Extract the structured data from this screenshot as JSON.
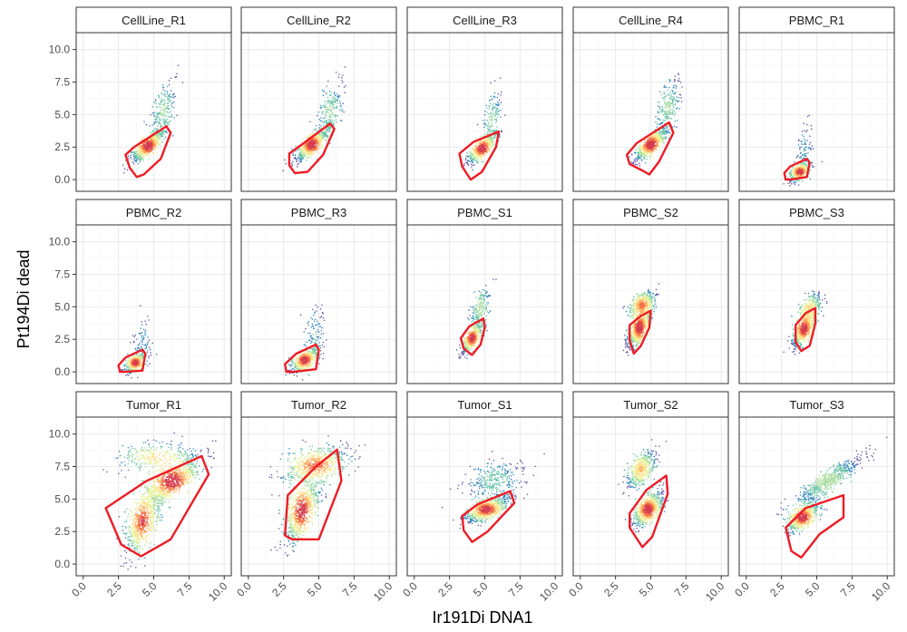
{
  "chart_data": {
    "type": "scatter",
    "xlabel": "Ir191Di DNA1",
    "ylabel": "Pt194Di dead",
    "xlim": [
      -0.5,
      10.5
    ],
    "ylim": [
      -0.9,
      11.3
    ],
    "x_ticks": [
      "0.0",
      "2.5",
      "5.0",
      "7.5",
      "10.0"
    ],
    "y_ticks": [
      "0.0",
      "2.5",
      "5.0",
      "7.5",
      "10.0"
    ],
    "grid": true,
    "colors": {
      "gate": "#ee1c25",
      "density_low": "#5e4fa2",
      "density_mid": "#3288bd",
      "density_high1": "#abdda4",
      "density_high2": "#fee08b",
      "density_peak": "#d53e4f"
    },
    "panels": [
      {
        "label": "CellLine_R1",
        "gate": [
          [
            3.0,
            1.9
          ],
          [
            3.6,
            2.5
          ],
          [
            5.9,
            4.1
          ],
          [
            6.2,
            3.6
          ],
          [
            5.5,
            1.6
          ],
          [
            4.3,
            0.4
          ],
          [
            3.8,
            0.2
          ],
          [
            3.3,
            0.9
          ]
        ],
        "clusters": [
          {
            "cx": 4.6,
            "cy": 2.6,
            "sx": 0.55,
            "sy": 0.6,
            "rho": 0.8,
            "n": 700
          },
          {
            "cx": 5.7,
            "cy": 5.3,
            "sx": 0.45,
            "sy": 1.1,
            "rho": 0.55,
            "n": 220
          }
        ]
      },
      {
        "label": "CellLine_R2",
        "gate": [
          [
            2.9,
            2.0
          ],
          [
            3.8,
            2.7
          ],
          [
            5.8,
            4.3
          ],
          [
            6.1,
            3.9
          ],
          [
            5.3,
            1.9
          ],
          [
            4.2,
            0.6
          ],
          [
            3.3,
            0.5
          ],
          [
            2.9,
            1.1
          ]
        ],
        "clusters": [
          {
            "cx": 4.5,
            "cy": 2.7,
            "sx": 0.55,
            "sy": 0.6,
            "rho": 0.8,
            "n": 700
          },
          {
            "cx": 5.8,
            "cy": 5.3,
            "sx": 0.45,
            "sy": 1.1,
            "rho": 0.55,
            "n": 220
          }
        ]
      },
      {
        "label": "CellLine_R3",
        "gate": [
          [
            3.2,
            2.0
          ],
          [
            4.2,
            2.9
          ],
          [
            6.0,
            3.7
          ],
          [
            5.8,
            2.5
          ],
          [
            4.8,
            0.6
          ],
          [
            4.0,
            0.0
          ],
          [
            3.4,
            1.0
          ]
        ],
        "clusters": [
          {
            "cx": 4.8,
            "cy": 2.4,
            "sx": 0.5,
            "sy": 0.55,
            "rho": 0.8,
            "n": 550
          },
          {
            "cx": 5.5,
            "cy": 4.6,
            "sx": 0.35,
            "sy": 1.1,
            "rho": 0.5,
            "n": 160
          }
        ]
      },
      {
        "label": "CellLine_R4",
        "gate": [
          [
            3.3,
            1.9
          ],
          [
            4.0,
            2.8
          ],
          [
            6.3,
            4.4
          ],
          [
            6.6,
            3.6
          ],
          [
            5.6,
            1.4
          ],
          [
            4.9,
            0.4
          ],
          [
            4.4,
            0.7
          ],
          [
            3.5,
            1.2
          ]
        ],
        "clusters": [
          {
            "cx": 5.0,
            "cy": 2.7,
            "sx": 0.55,
            "sy": 0.6,
            "rho": 0.8,
            "n": 700
          },
          {
            "cx": 6.2,
            "cy": 5.6,
            "sx": 0.45,
            "sy": 1.1,
            "rho": 0.55,
            "n": 220
          }
        ]
      },
      {
        "label": "PBMC_R1",
        "gate": [
          [
            2.7,
            0.5
          ],
          [
            3.1,
            1.0
          ],
          [
            4.3,
            1.6
          ],
          [
            4.5,
            1.3
          ],
          [
            4.3,
            0.2
          ],
          [
            3.1,
            0.0
          ],
          [
            2.8,
            0.0
          ]
        ],
        "clusters": [
          {
            "cx": 3.8,
            "cy": 0.6,
            "sx": 0.35,
            "sy": 0.35,
            "rho": 0.5,
            "n": 450
          },
          {
            "cx": 4.1,
            "cy": 2.2,
            "sx": 0.3,
            "sy": 0.9,
            "rho": 0.3,
            "n": 90
          }
        ]
      },
      {
        "label": "PBMC_R2",
        "gate": [
          [
            2.5,
            0.5
          ],
          [
            3.0,
            1.1
          ],
          [
            4.2,
            1.7
          ],
          [
            4.4,
            1.4
          ],
          [
            4.2,
            0.1
          ],
          [
            3.0,
            0.0
          ],
          [
            2.6,
            0.0
          ]
        ],
        "clusters": [
          {
            "cx": 3.7,
            "cy": 0.7,
            "sx": 0.35,
            "sy": 0.35,
            "rho": 0.5,
            "n": 450
          },
          {
            "cx": 4.2,
            "cy": 2.3,
            "sx": 0.3,
            "sy": 1.0,
            "rho": 0.3,
            "n": 90
          }
        ]
      },
      {
        "label": "PBMC_R3",
        "gate": [
          [
            2.6,
            0.6
          ],
          [
            3.4,
            1.4
          ],
          [
            4.8,
            2.1
          ],
          [
            5.0,
            1.7
          ],
          [
            4.8,
            0.2
          ],
          [
            3.2,
            0.0
          ],
          [
            2.7,
            0.0
          ]
        ],
        "clusters": [
          {
            "cx": 4.0,
            "cy": 0.9,
            "sx": 0.45,
            "sy": 0.45,
            "rho": 0.55,
            "n": 550
          },
          {
            "cx": 4.7,
            "cy": 2.8,
            "sx": 0.35,
            "sy": 1.2,
            "rho": 0.3,
            "n": 110
          }
        ]
      },
      {
        "label": "PBMC_S1",
        "gate": [
          [
            3.3,
            2.6
          ],
          [
            3.9,
            3.5
          ],
          [
            4.9,
            4.1
          ],
          [
            5.0,
            3.4
          ],
          [
            4.7,
            2.1
          ],
          [
            4.1,
            1.3
          ],
          [
            3.5,
            1.8
          ]
        ],
        "clusters": [
          {
            "cx": 4.1,
            "cy": 2.6,
            "sx": 0.35,
            "sy": 0.55,
            "rho": 0.75,
            "n": 500
          },
          {
            "cx": 4.7,
            "cy": 4.9,
            "sx": 0.35,
            "sy": 0.8,
            "rho": 0.5,
            "n": 200
          }
        ]
      },
      {
        "label": "PBMC_S2",
        "gate": [
          [
            3.5,
            3.6
          ],
          [
            4.3,
            4.3
          ],
          [
            5.0,
            4.7
          ],
          [
            4.9,
            3.4
          ],
          [
            4.3,
            2.0
          ],
          [
            3.8,
            1.4
          ],
          [
            3.5,
            2.4
          ]
        ],
        "clusters": [
          {
            "cx": 4.2,
            "cy": 3.4,
            "sx": 0.4,
            "sy": 0.75,
            "rho": 0.7,
            "n": 800
          },
          {
            "cx": 4.4,
            "cy": 5.2,
            "sx": 0.45,
            "sy": 0.5,
            "rho": 0.5,
            "n": 450
          }
        ]
      },
      {
        "label": "PBMC_S3",
        "gate": [
          [
            3.5,
            3.6
          ],
          [
            4.2,
            4.5
          ],
          [
            4.9,
            4.9
          ],
          [
            4.9,
            3.7
          ],
          [
            4.5,
            2.0
          ],
          [
            3.9,
            1.6
          ],
          [
            3.5,
            2.3
          ]
        ],
        "clusters": [
          {
            "cx": 4.1,
            "cy": 3.3,
            "sx": 0.4,
            "sy": 0.65,
            "rho": 0.7,
            "n": 650
          },
          {
            "cx": 4.5,
            "cy": 4.9,
            "sx": 0.4,
            "sy": 0.55,
            "rho": 0.5,
            "n": 300
          }
        ]
      },
      {
        "label": "Tumor_R1",
        "gate": [
          [
            1.6,
            4.3
          ],
          [
            4.5,
            6.4
          ],
          [
            8.4,
            8.3
          ],
          [
            8.9,
            6.9
          ],
          [
            6.2,
            1.9
          ],
          [
            4.1,
            0.6
          ],
          [
            2.7,
            1.5
          ]
        ],
        "clusters": [
          {
            "cx": 4.2,
            "cy": 3.3,
            "sx": 0.6,
            "sy": 1.3,
            "rho": 0.6,
            "n": 700
          },
          {
            "cx": 6.3,
            "cy": 6.4,
            "sx": 1.0,
            "sy": 0.9,
            "rho": 0.75,
            "n": 900
          },
          {
            "cx": 5.0,
            "cy": 8.3,
            "sx": 1.3,
            "sy": 0.5,
            "rho": 0.2,
            "n": 300
          }
        ]
      },
      {
        "label": "Tumor_R2",
        "gate": [
          [
            2.8,
            5.3
          ],
          [
            4.8,
            7.5
          ],
          [
            6.3,
            8.8
          ],
          [
            6.6,
            6.4
          ],
          [
            5.0,
            1.9
          ],
          [
            3.1,
            1.9
          ],
          [
            2.6,
            2.2
          ]
        ],
        "clusters": [
          {
            "cx": 3.8,
            "cy": 4.1,
            "sx": 0.6,
            "sy": 1.2,
            "rho": 0.6,
            "n": 800
          },
          {
            "cx": 4.8,
            "cy": 7.6,
            "sx": 1.1,
            "sy": 0.7,
            "rho": 0.4,
            "n": 700
          }
        ]
      },
      {
        "label": "Tumor_S1",
        "gate": [
          [
            3.4,
            3.7
          ],
          [
            4.5,
            4.6
          ],
          [
            6.8,
            5.6
          ],
          [
            7.1,
            4.7
          ],
          [
            5.2,
            2.5
          ],
          [
            4.1,
            1.7
          ],
          [
            3.5,
            2.6
          ]
        ],
        "clusters": [
          {
            "cx": 5.1,
            "cy": 4.2,
            "sx": 0.7,
            "sy": 0.45,
            "rho": 0.6,
            "n": 850
          },
          {
            "cx": 5.7,
            "cy": 6.4,
            "sx": 1.0,
            "sy": 0.8,
            "rho": 0.4,
            "n": 300
          }
        ]
      },
      {
        "label": "Tumor_S2",
        "gate": [
          [
            3.5,
            3.9
          ],
          [
            4.7,
            5.7
          ],
          [
            6.1,
            6.8
          ],
          [
            6.2,
            5.4
          ],
          [
            5.1,
            2.1
          ],
          [
            4.4,
            1.3
          ],
          [
            3.5,
            2.8
          ]
        ],
        "clusters": [
          {
            "cx": 4.8,
            "cy": 4.2,
            "sx": 0.5,
            "sy": 0.65,
            "rho": 0.6,
            "n": 750
          },
          {
            "cx": 4.3,
            "cy": 7.3,
            "sx": 0.5,
            "sy": 0.7,
            "rho": 0.55,
            "n": 500
          }
        ]
      },
      {
        "label": "Tumor_S3",
        "gate": [
          [
            2.8,
            2.8
          ],
          [
            4.2,
            4.3
          ],
          [
            6.9,
            5.3
          ],
          [
            6.9,
            3.6
          ],
          [
            5.2,
            2.3
          ],
          [
            3.9,
            0.5
          ],
          [
            3.2,
            1.0
          ]
        ],
        "clusters": [
          {
            "cx": 4.0,
            "cy": 3.6,
            "sx": 0.55,
            "sy": 0.55,
            "rho": 0.6,
            "n": 650
          },
          {
            "cx": 5.8,
            "cy": 6.4,
            "sx": 1.2,
            "sy": 0.95,
            "rho": 0.9,
            "n": 600
          }
        ]
      }
    ]
  }
}
